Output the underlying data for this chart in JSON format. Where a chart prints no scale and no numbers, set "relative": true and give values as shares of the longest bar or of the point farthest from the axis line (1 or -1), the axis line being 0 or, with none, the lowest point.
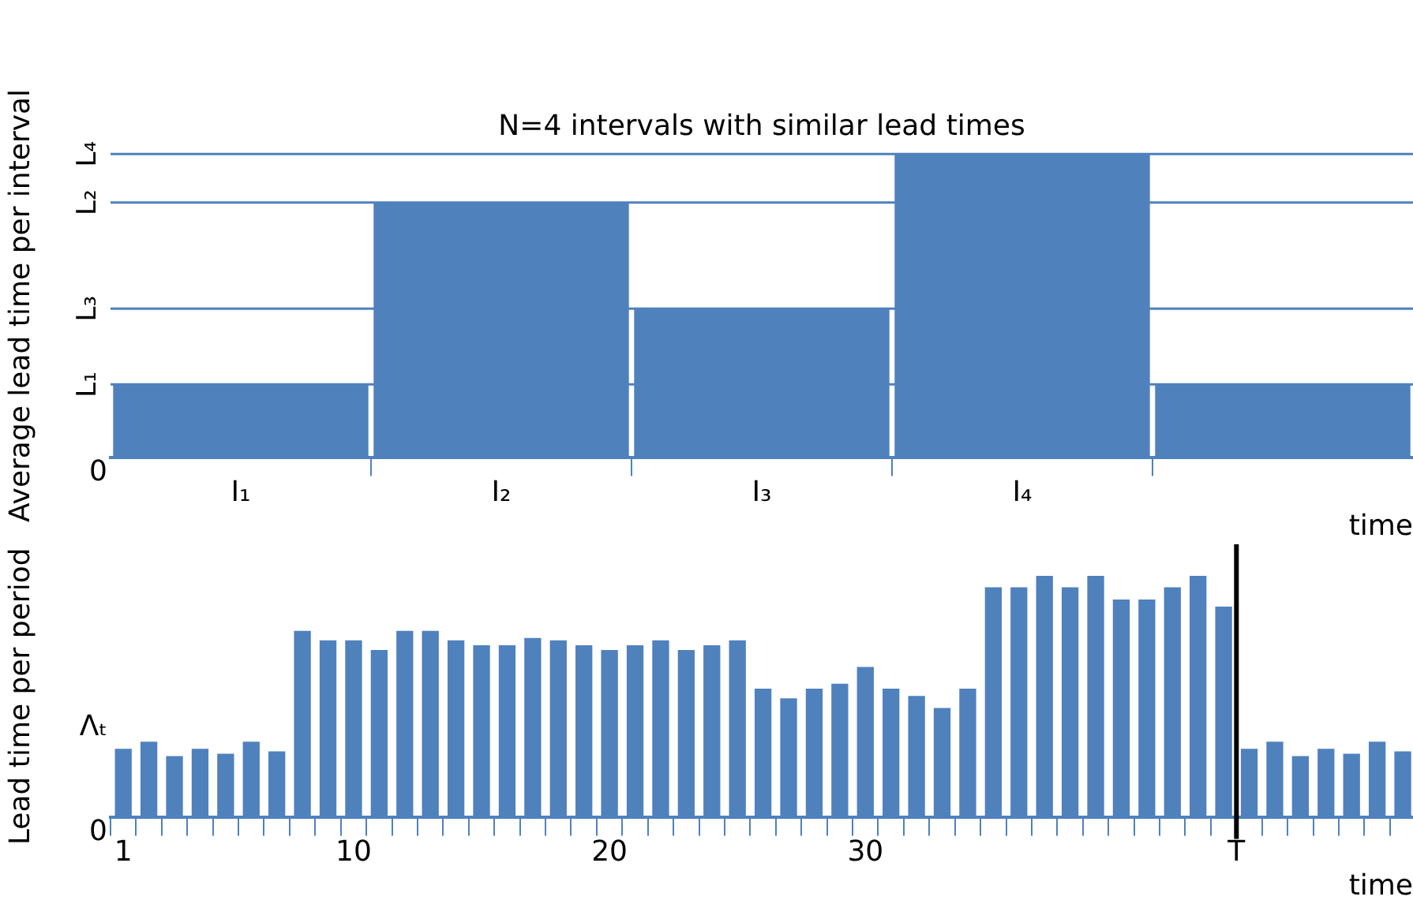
{
  "chart_data": [
    {
      "type": "bar",
      "title": "N=4 intervals with similar lead times",
      "ylabel": "Average lead time per interval",
      "xlabel": "time",
      "relative": true,
      "color": "#4f81bd",
      "categories": [
        "I₁",
        "I₂",
        "I₃",
        "I₄",
        null
      ],
      "values": [
        0.24,
        0.84,
        0.49,
        1,
        0.24
      ],
      "annotations": [
        "0"
      ],
      "ref_lines": [
        {
          "axis": "y",
          "value": 0.24,
          "label": "L₁"
        },
        {
          "axis": "y",
          "value": 0.84,
          "label": "L₂"
        },
        {
          "axis": "y",
          "value": 0.49,
          "label": "L₃"
        },
        {
          "axis": "y",
          "value": 1,
          "label": "L₄"
        }
      ],
      "grid": false,
      "legend": false
    },
    {
      "type": "bar",
      "ylabel": "Lead time per period",
      "xlabel": "time",
      "relative": true,
      "color": "#4f81bd",
      "x": [
        1,
        2,
        3,
        4,
        5,
        6,
        7,
        8,
        9,
        10,
        11,
        12,
        13,
        14,
        15,
        16,
        17,
        18,
        19,
        20,
        21,
        22,
        23,
        24,
        25,
        26,
        27,
        28,
        29,
        30,
        31,
        32,
        33,
        34,
        35,
        36,
        37,
        38,
        39,
        40,
        41,
        42,
        43,
        44,
        45,
        46,
        47,
        48,
        49,
        50,
        51
      ],
      "values": [
        0.28,
        0.31,
        0.25,
        0.28,
        0.26,
        0.31,
        0.27,
        0.77,
        0.73,
        0.73,
        0.69,
        0.77,
        0.77,
        0.73,
        0.71,
        0.71,
        0.74,
        0.73,
        0.71,
        0.69,
        0.71,
        0.73,
        0.69,
        0.71,
        0.73,
        0.53,
        0.49,
        0.53,
        0.55,
        0.62,
        0.53,
        0.5,
        0.45,
        0.53,
        0.95,
        0.95,
        1,
        0.95,
        1,
        0.9,
        0.9,
        0.95,
        1,
        0.87,
        0.28,
        0.31,
        0.25,
        0.28,
        0.26,
        0.31,
        0.27
      ],
      "xlim": [
        0.5,
        51.4
      ],
      "xticks": [
        {
          "value": 0.5,
          "label": null
        },
        1,
        {
          "value": 1.5,
          "label": null
        },
        {
          "value": 2.5,
          "label": null
        },
        {
          "value": 3.5,
          "label": null
        },
        {
          "value": 4.5,
          "label": null
        },
        {
          "value": 5.5,
          "label": null
        },
        {
          "value": 6.5,
          "label": null
        },
        {
          "value": 7.5,
          "label": null
        },
        {
          "value": 8.5,
          "label": null
        },
        {
          "value": 9.5,
          "label": null
        },
        10,
        {
          "value": 10.5,
          "label": null
        },
        {
          "value": 11.5,
          "label": null
        },
        {
          "value": 12.5,
          "label": null
        },
        {
          "value": 13.5,
          "label": null
        },
        {
          "value": 14.5,
          "label": null
        },
        {
          "value": 15.5,
          "label": null
        },
        {
          "value": 16.5,
          "label": null
        },
        {
          "value": 17.5,
          "label": null
        },
        {
          "value": 18.5,
          "label": null
        },
        {
          "value": 19.5,
          "label": null
        },
        20,
        {
          "value": 20.5,
          "label": null
        },
        {
          "value": 21.5,
          "label": null
        },
        {
          "value": 22.5,
          "label": null
        },
        {
          "value": 23.5,
          "label": null
        },
        {
          "value": 24.5,
          "label": null
        },
        {
          "value": 25.5,
          "label": null
        },
        {
          "value": 26.5,
          "label": null
        },
        {
          "value": 27.5,
          "label": null
        },
        {
          "value": 28.5,
          "label": null
        },
        {
          "value": 29.5,
          "label": null
        },
        30,
        {
          "value": 30.5,
          "label": null
        },
        {
          "value": 31.5,
          "label": null
        },
        {
          "value": 32.5,
          "label": null
        },
        {
          "value": 33.5,
          "label": null
        },
        {
          "value": 34.5,
          "label": null
        },
        {
          "value": 35.5,
          "label": null
        },
        {
          "value": 36.5,
          "label": null
        },
        {
          "value": 37.5,
          "label": null
        },
        {
          "value": 38.5,
          "label": null
        },
        {
          "value": 39.5,
          "label": null
        },
        {
          "value": 40.5,
          "label": null
        },
        {
          "value": 41.5,
          "label": null
        },
        {
          "value": 42.5,
          "label": null
        },
        {
          "value": 43.5,
          "label": null
        },
        {
          "value": 44.5,
          "label": "T"
        },
        {
          "value": 45.5,
          "label": null
        },
        {
          "value": 46.5,
          "label": null
        },
        {
          "value": 47.5,
          "label": null
        },
        {
          "value": 48.5,
          "label": null
        },
        {
          "value": 49.5,
          "label": null
        },
        {
          "value": 50.5,
          "label": null
        }
      ],
      "annotations": [
        "0",
        "Λₜ"
      ],
      "ref_lines": [
        {
          "axis": "x",
          "value": 44.5,
          "color": "#000000"
        }
      ],
      "grid": false,
      "legend": false
    }
  ]
}
